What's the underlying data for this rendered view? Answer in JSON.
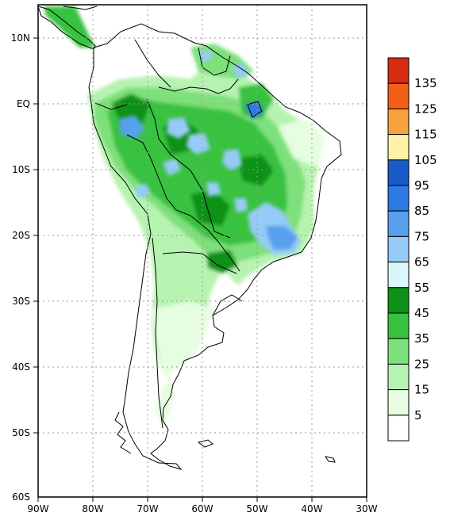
{
  "map": {
    "lat_labels": [
      "10N",
      "EQ",
      "10S",
      "20S",
      "30S",
      "40S",
      "50S",
      "60S"
    ],
    "lon_labels": [
      "90W",
      "80W",
      "70W",
      "60W",
      "50W",
      "40W",
      "30W"
    ],
    "colors": {
      "frame": "#000000",
      "grid": "#9a9a9a",
      "coast": "#000000"
    }
  },
  "legend": {
    "levels": [
      "135",
      "125",
      "115",
      "105",
      "95",
      "85",
      "75",
      "65",
      "55",
      "45",
      "35",
      "25",
      "15",
      "5"
    ],
    "colors": [
      "#d62c10",
      "#f25f17",
      "#f8a23d",
      "#fef2a8",
      "#1a5bc9",
      "#2d79e6",
      "#57a0ee",
      "#97cbf7",
      "#d9f7fb",
      "#0f9118",
      "#38c23f",
      "#7ee07a",
      "#b6f3b0",
      "#e6fde2",
      "#ffffff"
    ]
  }
}
